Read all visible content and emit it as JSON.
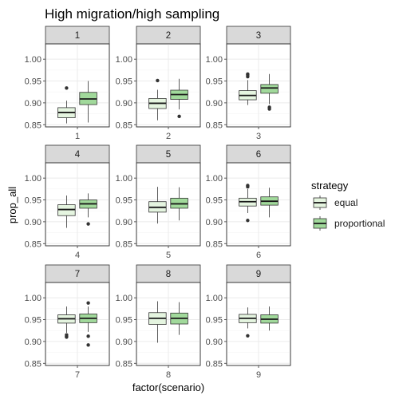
{
  "chart_data": {
    "type": "boxplot",
    "title": "High migration/high sampling",
    "xlabel": "factor(scenario)",
    "ylabel": "prop_all",
    "ylim": [
      0.845,
      1.035
    ],
    "yticks": [
      "0.85",
      "0.90",
      "0.95",
      "1.00"
    ],
    "grid": true,
    "legend": {
      "title": "strategy",
      "position": "right",
      "entries": [
        {
          "name": "equal",
          "color": "#e5f5e0"
        },
        {
          "name": "proportional",
          "color": "#a1d99b"
        }
      ]
    },
    "colors": {
      "equal": "#e5f5e0",
      "proportional": "#a1d99b"
    },
    "panels": [
      {
        "label": "1",
        "x_tick": "1",
        "boxes": [
          {
            "strategy": "equal",
            "lower_whisker": 0.853,
            "q1": 0.866,
            "median": 0.878,
            "q3": 0.889,
            "upper_whisker": 0.905,
            "outliers": [
              0.934
            ]
          },
          {
            "strategy": "proportional",
            "lower_whisker": 0.855,
            "q1": 0.896,
            "median": 0.909,
            "q3": 0.924,
            "upper_whisker": 0.95,
            "outliers": []
          }
        ]
      },
      {
        "label": "2",
        "x_tick": "2",
        "boxes": [
          {
            "strategy": "equal",
            "lower_whisker": 0.86,
            "q1": 0.887,
            "median": 0.899,
            "q3": 0.91,
            "upper_whisker": 0.93,
            "outliers": [
              0.951
            ]
          },
          {
            "strategy": "proportional",
            "lower_whisker": 0.885,
            "q1": 0.908,
            "median": 0.919,
            "q3": 0.929,
            "upper_whisker": 0.955,
            "outliers": [
              0.869
            ]
          }
        ]
      },
      {
        "label": "3",
        "x_tick": "3",
        "boxes": [
          {
            "strategy": "equal",
            "lower_whisker": 0.895,
            "q1": 0.907,
            "median": 0.917,
            "q3": 0.928,
            "upper_whisker": 0.952,
            "outliers": [
              0.96,
              0.964,
              0.966
            ]
          },
          {
            "strategy": "proportional",
            "lower_whisker": 0.897,
            "q1": 0.922,
            "median": 0.934,
            "q3": 0.942,
            "upper_whisker": 0.966,
            "outliers": [
              0.886,
              0.89
            ]
          }
        ]
      },
      {
        "label": "4",
        "x_tick": "4",
        "boxes": [
          {
            "strategy": "equal",
            "lower_whisker": 0.886,
            "q1": 0.914,
            "median": 0.928,
            "q3": 0.939,
            "upper_whisker": 0.96,
            "outliers": []
          },
          {
            "strategy": "proportional",
            "lower_whisker": 0.91,
            "q1": 0.931,
            "median": 0.941,
            "q3": 0.95,
            "upper_whisker": 0.965,
            "outliers": [
              0.895
            ]
          }
        ]
      },
      {
        "label": "5",
        "x_tick": "5",
        "boxes": [
          {
            "strategy": "equal",
            "lower_whisker": 0.896,
            "q1": 0.922,
            "median": 0.933,
            "q3": 0.946,
            "upper_whisker": 0.98,
            "outliers": []
          },
          {
            "strategy": "proportional",
            "lower_whisker": 0.903,
            "q1": 0.931,
            "median": 0.941,
            "q3": 0.954,
            "upper_whisker": 0.979,
            "outliers": []
          }
        ]
      },
      {
        "label": "6",
        "x_tick": "6",
        "boxes": [
          {
            "strategy": "equal",
            "lower_whisker": 0.92,
            "q1": 0.936,
            "median": 0.946,
            "q3": 0.954,
            "upper_whisker": 0.975,
            "outliers": [
              0.903,
              0.98,
              0.983
            ]
          },
          {
            "strategy": "proportional",
            "lower_whisker": 0.91,
            "q1": 0.938,
            "median": 0.947,
            "q3": 0.957,
            "upper_whisker": 0.978,
            "outliers": []
          }
        ]
      },
      {
        "label": "7",
        "x_tick": "7",
        "boxes": [
          {
            "strategy": "equal",
            "lower_whisker": 0.92,
            "q1": 0.942,
            "median": 0.952,
            "q3": 0.961,
            "upper_whisker": 0.98,
            "outliers": [
              0.91,
              0.912,
              0.915
            ]
          },
          {
            "strategy": "proportional",
            "lower_whisker": 0.922,
            "q1": 0.943,
            "median": 0.953,
            "q3": 0.963,
            "upper_whisker": 0.98,
            "outliers": [
              0.988,
              0.912,
              0.892
            ]
          }
        ]
      },
      {
        "label": "8",
        "x_tick": "8",
        "boxes": [
          {
            "strategy": "equal",
            "lower_whisker": 0.897,
            "q1": 0.939,
            "median": 0.953,
            "q3": 0.966,
            "upper_whisker": 0.992,
            "outliers": []
          },
          {
            "strategy": "proportional",
            "lower_whisker": 0.915,
            "q1": 0.94,
            "median": 0.953,
            "q3": 0.965,
            "upper_whisker": 0.99,
            "outliers": []
          }
        ]
      },
      {
        "label": "9",
        "x_tick": "9",
        "boxes": [
          {
            "strategy": "equal",
            "lower_whisker": 0.93,
            "q1": 0.943,
            "median": 0.953,
            "q3": 0.962,
            "upper_whisker": 0.978,
            "outliers": [
              0.913
            ]
          },
          {
            "strategy": "proportional",
            "lower_whisker": 0.925,
            "q1": 0.942,
            "median": 0.951,
            "q3": 0.961,
            "upper_whisker": 0.98,
            "outliers": []
          }
        ]
      }
    ]
  }
}
